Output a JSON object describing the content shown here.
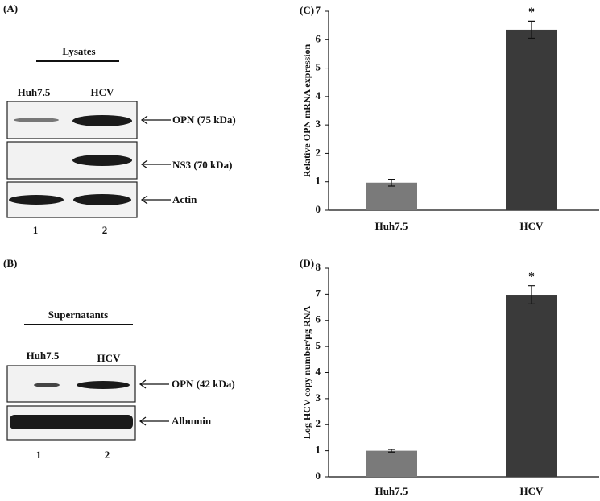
{
  "chart_data": [
    {
      "type": "bar",
      "panel": "(C)",
      "ylabel": "Relative OPN mRNA expression",
      "categories": [
        "Huh7.5",
        "HCV"
      ],
      "values": [
        0.97,
        6.35
      ],
      "errors": [
        0.12,
        0.3
      ],
      "colors": [
        "#7a7a7a",
        "#3a3a3a"
      ],
      "ylim": [
        0,
        7
      ],
      "yticks": [
        0,
        1,
        2,
        3,
        4,
        5,
        6,
        7
      ],
      "annotation": "*"
    },
    {
      "type": "bar",
      "panel": "(D)",
      "ylabel": "Log HCV copy number/µg RNA",
      "categories": [
        "Huh7.5",
        "HCV"
      ],
      "values": [
        1.0,
        6.98
      ],
      "errors": [
        0.05,
        0.35
      ],
      "colors": [
        "#7a7a7a",
        "#3a3a3a"
      ],
      "ylim": [
        0,
        8
      ],
      "yticks": [
        0,
        1,
        2,
        3,
        4,
        5,
        6,
        7,
        8
      ],
      "annotation": "*"
    }
  ],
  "blots": [
    {
      "panel": "(A)",
      "title": "Lysates",
      "lanes": [
        "Huh7.5",
        "HCV"
      ],
      "rows": [
        "OPN (75 kDa)",
        "NS3 (70 kDa)",
        "Actin"
      ],
      "lane_numbers": [
        "1",
        "2"
      ]
    },
    {
      "panel": "(B)",
      "title": "Supernatants",
      "lanes": [
        "Huh7.5",
        "HCV"
      ],
      "rows": [
        "OPN (42 kDa)",
        "Albumin"
      ],
      "lane_numbers": [
        "1",
        "2"
      ]
    }
  ]
}
